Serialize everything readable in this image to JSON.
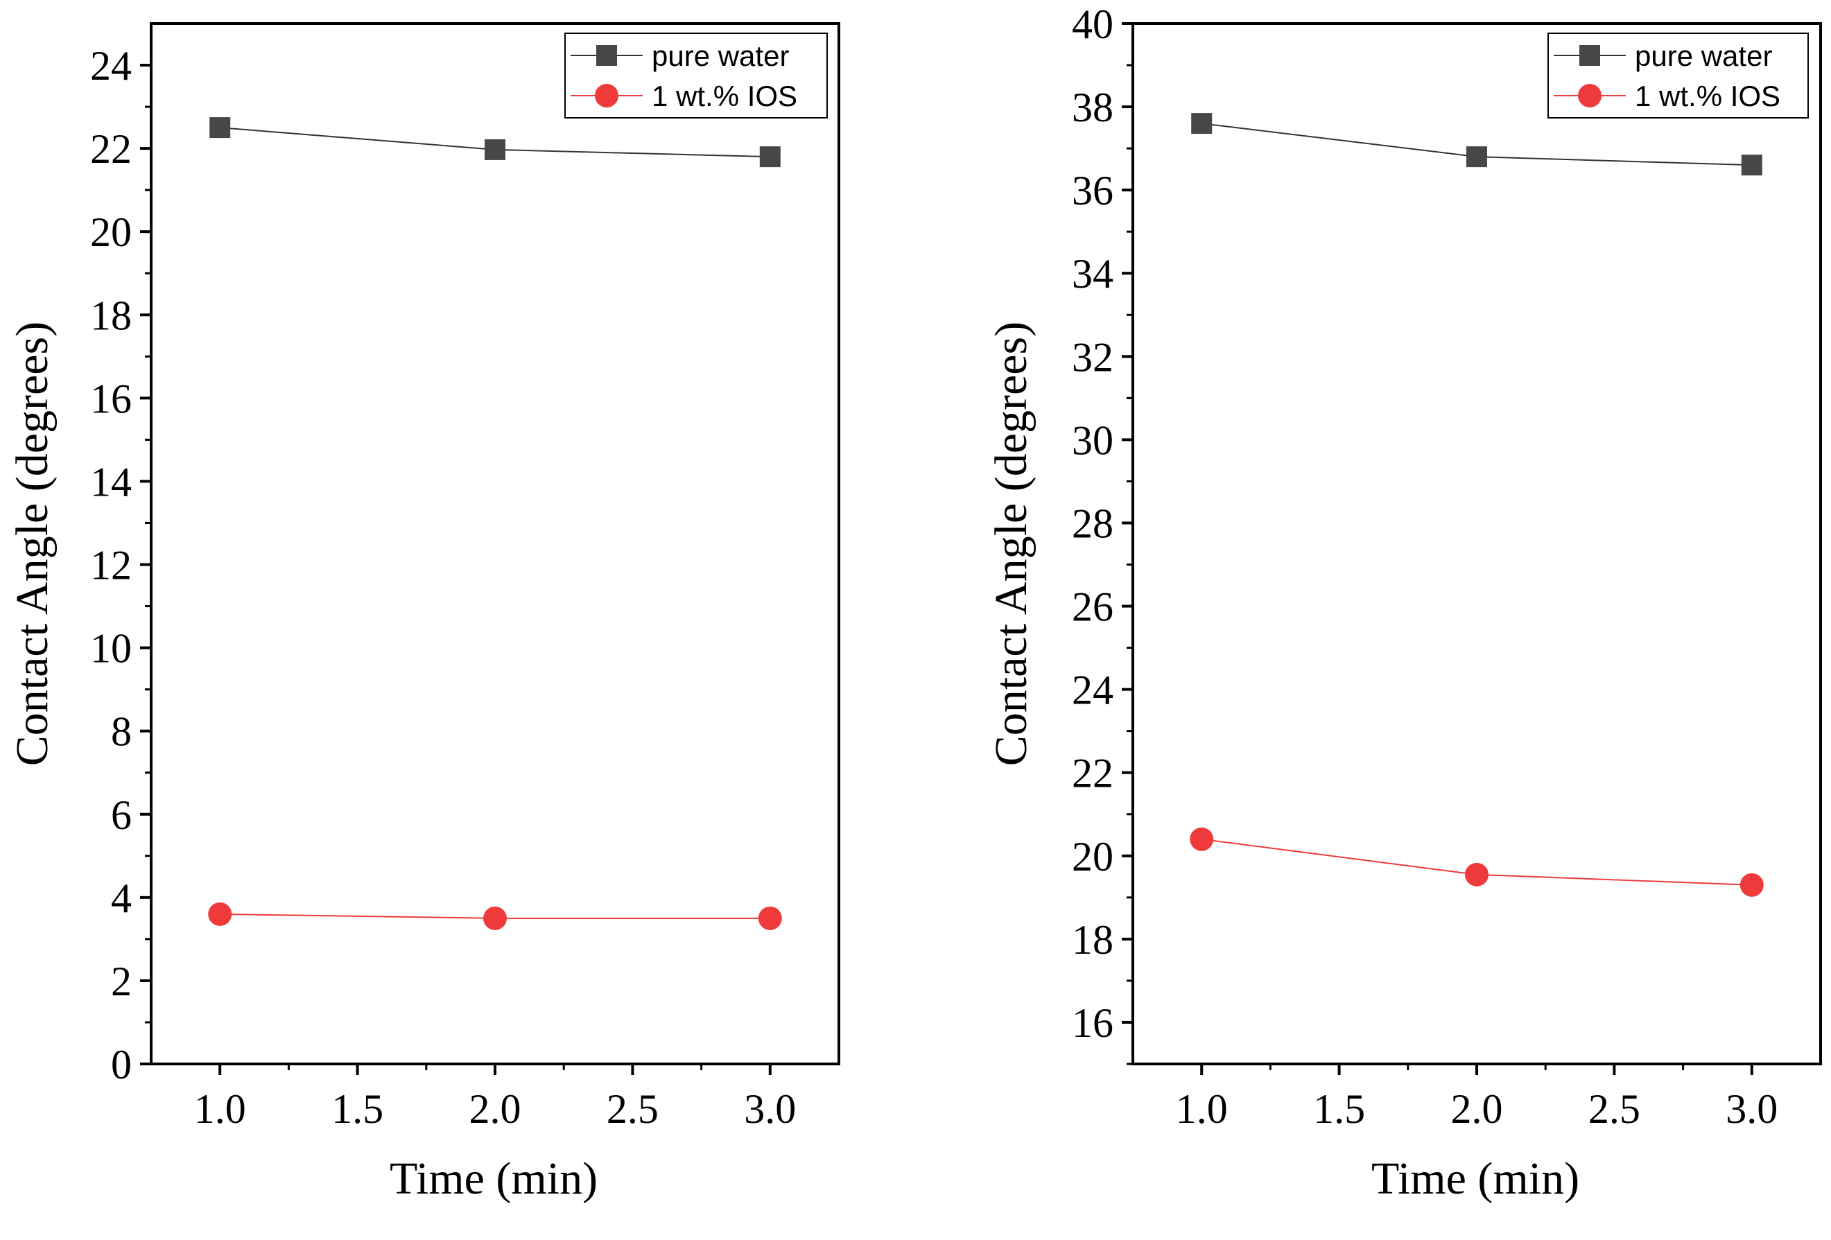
{
  "chart_data": [
    {
      "type": "line",
      "xlabel": "Time (min)",
      "ylabel": "Contact Angle (degrees)",
      "xlim": [
        0.75,
        3.25
      ],
      "ylim": [
        0,
        25
      ],
      "xticks": [
        1.0,
        1.5,
        2.0,
        2.5,
        3.0
      ],
      "xtick_labels": [
        "1.0",
        "1.5",
        "2.0",
        "2.5",
        "3.0"
      ],
      "yticks": [
        0,
        2,
        4,
        6,
        8,
        10,
        12,
        14,
        16,
        18,
        20,
        22,
        24
      ],
      "ytick_labels": [
        "0",
        "2",
        "4",
        "6",
        "8",
        "10",
        "12",
        "14",
        "16",
        "18",
        "20",
        "22",
        "24"
      ],
      "legend_position": "top-right",
      "grid": false,
      "series": [
        {
          "name": "pure water",
          "marker": "square",
          "color": "#474747",
          "line_color": "#333333",
          "x": [
            1.0,
            2.0,
            3.0
          ],
          "values": [
            22.5,
            21.97,
            21.8
          ]
        },
        {
          "name": "1 wt.% IOS",
          "marker": "circle",
          "color": "#ee3a3a",
          "line_color": "#ee3a3a",
          "x": [
            1.0,
            2.0,
            3.0
          ],
          "values": [
            3.6,
            3.5,
            3.5
          ]
        }
      ]
    },
    {
      "type": "line",
      "xlabel": "Time (min)",
      "ylabel": "Contact Angle (degrees)",
      "xlim": [
        0.75,
        3.25
      ],
      "ylim": [
        15,
        40
      ],
      "xticks": [
        1.0,
        1.5,
        2.0,
        2.5,
        3.0
      ],
      "xtick_labels": [
        "1.0",
        "1.5",
        "2.0",
        "2.5",
        "3.0"
      ],
      "yticks": [
        16,
        18,
        20,
        22,
        24,
        26,
        28,
        30,
        32,
        34,
        36,
        38,
        40
      ],
      "ytick_labels": [
        "16",
        "18",
        "20",
        "22",
        "24",
        "26",
        "28",
        "30",
        "32",
        "34",
        "36",
        "38",
        "40"
      ],
      "legend_position": "top-right",
      "grid": false,
      "series": [
        {
          "name": "pure water",
          "marker": "square",
          "color": "#474747",
          "line_color": "#333333",
          "x": [
            1.0,
            2.0,
            3.0
          ],
          "values": [
            37.6,
            36.8,
            36.6
          ]
        },
        {
          "name": "1 wt.% IOS",
          "marker": "circle",
          "color": "#ee3a3a",
          "line_color": "#ee3a3a",
          "x": [
            1.0,
            2.0,
            3.0
          ],
          "values": [
            20.4,
            19.55,
            19.3
          ]
        }
      ]
    }
  ]
}
